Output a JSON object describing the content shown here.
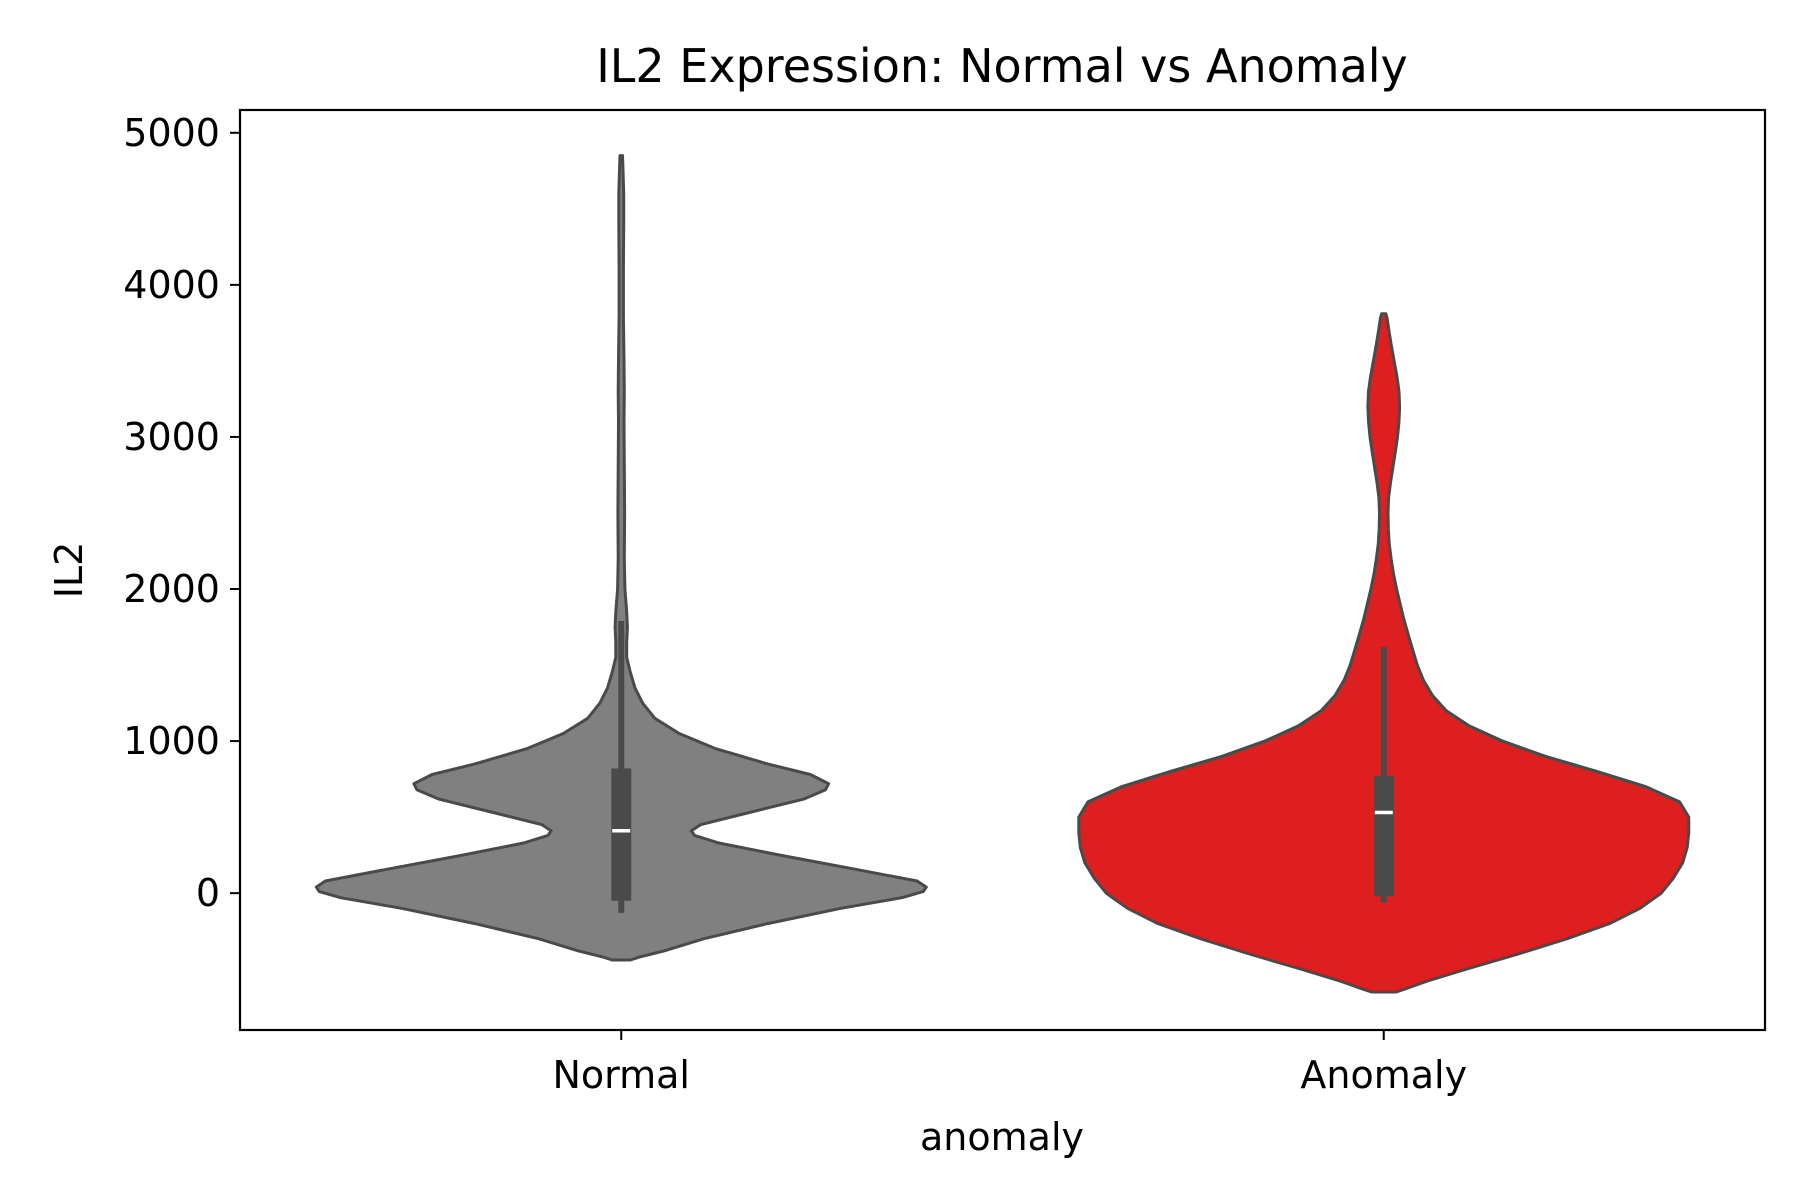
{
  "chart_data": {
    "type": "violin",
    "title": "IL2 Expression: Normal vs Anomaly",
    "xlabel": "anomaly",
    "ylabel": "IL2",
    "categories": [
      "Normal",
      "Anomaly"
    ],
    "ylim": [
      -900,
      5150
    ],
    "yticks": [
      0,
      1000,
      2000,
      3000,
      4000,
      5000
    ],
    "yticklabels": [
      "0",
      "1000",
      "2000",
      "3000",
      "4000",
      "5000"
    ],
    "grid": false,
    "legend": "none",
    "colors": {
      "Normal": "#808080",
      "Anomaly": "#de1f1f",
      "outline": "#4a4a4a",
      "box": "#4a4a4a",
      "median": "#ffffff"
    },
    "series": [
      {
        "category": "Normal",
        "min": -440,
        "max": 4850,
        "quartiles": {
          "q1": -50,
          "median": 410,
          "q3": 820
        },
        "whiskers": [
          -130,
          1790
        ],
        "profile": [
          [
            -440,
            0.03
          ],
          [
            -420,
            0.06
          ],
          [
            -380,
            0.14
          ],
          [
            -300,
            0.27
          ],
          [
            -200,
            0.48
          ],
          [
            -100,
            0.72
          ],
          [
            -30,
            0.92
          ],
          [
            10,
            0.99
          ],
          [
            40,
            1.0
          ],
          [
            80,
            0.97
          ],
          [
            160,
            0.76
          ],
          [
            250,
            0.52
          ],
          [
            330,
            0.32
          ],
          [
            380,
            0.24
          ],
          [
            410,
            0.23
          ],
          [
            450,
            0.26
          ],
          [
            530,
            0.42
          ],
          [
            620,
            0.6
          ],
          [
            680,
            0.67
          ],
          [
            720,
            0.68
          ],
          [
            780,
            0.62
          ],
          [
            850,
            0.48
          ],
          [
            950,
            0.31
          ],
          [
            1050,
            0.19
          ],
          [
            1150,
            0.11
          ],
          [
            1250,
            0.07
          ],
          [
            1350,
            0.045
          ],
          [
            1450,
            0.03
          ],
          [
            1550,
            0.018
          ],
          [
            1650,
            0.018
          ],
          [
            1750,
            0.02
          ],
          [
            1850,
            0.018
          ],
          [
            2000,
            0.012
          ],
          [
            2200,
            0.01
          ],
          [
            2500,
            0.011
          ],
          [
            2800,
            0.01
          ],
          [
            3100,
            0.009
          ],
          [
            3300,
            0.01
          ],
          [
            3500,
            0.009
          ],
          [
            3800,
            0.007
          ],
          [
            4100,
            0.007
          ],
          [
            4400,
            0.008
          ],
          [
            4600,
            0.008
          ],
          [
            4800,
            0.005
          ],
          [
            4850,
            0.004
          ]
        ]
      },
      {
        "category": "Anomaly",
        "min": -650,
        "max": 3810,
        "quartiles": {
          "q1": -20,
          "median": 530,
          "q3": 770
        },
        "whiskers": [
          -60,
          1620
        ],
        "profile": [
          [
            -650,
            0.04
          ],
          [
            -630,
            0.07
          ],
          [
            -580,
            0.14
          ],
          [
            -500,
            0.27
          ],
          [
            -400,
            0.44
          ],
          [
            -300,
            0.6
          ],
          [
            -200,
            0.74
          ],
          [
            -100,
            0.84
          ],
          [
            0,
            0.91
          ],
          [
            100,
            0.95
          ],
          [
            200,
            0.98
          ],
          [
            300,
            0.995
          ],
          [
            400,
            1.0
          ],
          [
            500,
            1.0
          ],
          [
            600,
            0.97
          ],
          [
            700,
            0.86
          ],
          [
            800,
            0.7
          ],
          [
            900,
            0.53
          ],
          [
            1000,
            0.39
          ],
          [
            1100,
            0.28
          ],
          [
            1200,
            0.205
          ],
          [
            1300,
            0.16
          ],
          [
            1400,
            0.13
          ],
          [
            1500,
            0.11
          ],
          [
            1600,
            0.095
          ],
          [
            1700,
            0.08
          ],
          [
            1800,
            0.066
          ],
          [
            1900,
            0.054
          ],
          [
            2000,
            0.042
          ],
          [
            2100,
            0.032
          ],
          [
            2200,
            0.024
          ],
          [
            2300,
            0.018
          ],
          [
            2400,
            0.015
          ],
          [
            2500,
            0.014
          ],
          [
            2600,
            0.016
          ],
          [
            2700,
            0.022
          ],
          [
            2800,
            0.03
          ],
          [
            2900,
            0.038
          ],
          [
            3000,
            0.045
          ],
          [
            3100,
            0.05
          ],
          [
            3200,
            0.052
          ],
          [
            3300,
            0.05
          ],
          [
            3400,
            0.043
          ],
          [
            3500,
            0.034
          ],
          [
            3600,
            0.025
          ],
          [
            3700,
            0.017
          ],
          [
            3780,
            0.011
          ],
          [
            3810,
            0.007
          ]
        ]
      }
    ]
  }
}
